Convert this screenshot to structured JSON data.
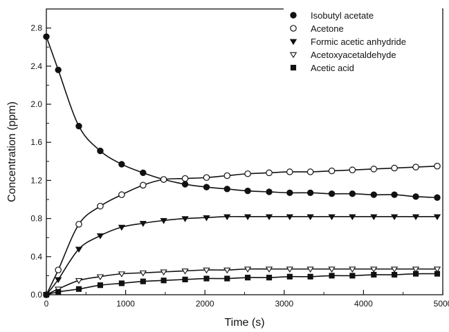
{
  "chart_data": {
    "type": "scatter",
    "title": "",
    "xlabel": "Time (s)",
    "ylabel": "Concentration (ppm)",
    "xlim": [
      0,
      5000
    ],
    "ylim": [
      0,
      3.0
    ],
    "xticks": [
      0,
      1000,
      2000,
      3000,
      4000,
      5000
    ],
    "xtick_labels": [
      "0",
      "1000",
      "2000",
      "3000",
      "4000",
      "5000"
    ],
    "yticks": [
      0,
      0.4,
      0.8,
      1.2,
      1.6,
      2.0,
      2.4,
      2.8
    ],
    "ytick_labels": [
      "0.0",
      "0.4",
      "0.8",
      "1.2",
      "1.6",
      "2.0",
      "2.4",
      "2.8"
    ],
    "grid": false,
    "legend_position": "top-right",
    "fit_curves": true,
    "x": [
      0,
      150,
      410,
      680,
      950,
      1220,
      1480,
      1750,
      2020,
      2280,
      2540,
      2810,
      3070,
      3330,
      3600,
      3860,
      4130,
      4390,
      4660,
      4930
    ],
    "series": [
      {
        "name": "Isobutyl acetate",
        "marker": "circle-filled",
        "color": "#111111",
        "values": [
          2.71,
          2.36,
          1.77,
          1.51,
          1.37,
          1.28,
          1.21,
          1.16,
          1.13,
          1.11,
          1.09,
          1.08,
          1.07,
          1.07,
          1.06,
          1.06,
          1.05,
          1.05,
          1.03,
          1.02
        ]
      },
      {
        "name": "Acetone",
        "marker": "circle-open",
        "color": "#111111",
        "values": [
          0.0,
          0.26,
          0.74,
          0.93,
          1.05,
          1.15,
          1.21,
          1.22,
          1.23,
          1.25,
          1.27,
          1.28,
          1.29,
          1.29,
          1.3,
          1.31,
          1.32,
          1.33,
          1.34,
          1.35
        ]
      },
      {
        "name": "Formic acetic anhydride",
        "marker": "triangle-down-filled",
        "color": "#111111",
        "values": [
          0.0,
          0.16,
          0.48,
          0.62,
          0.71,
          0.75,
          0.78,
          0.8,
          0.81,
          0.82,
          0.82,
          0.82,
          0.82,
          0.82,
          0.82,
          0.82,
          0.82,
          0.82,
          0.82,
          0.82
        ]
      },
      {
        "name": "Acetoxyacetaldehyde",
        "marker": "triangle-down-open",
        "color": "#111111",
        "values": [
          0.0,
          0.06,
          0.15,
          0.19,
          0.22,
          0.23,
          0.24,
          0.25,
          0.26,
          0.26,
          0.27,
          0.27,
          0.27,
          0.27,
          0.27,
          0.27,
          0.27,
          0.27,
          0.27,
          0.27
        ]
      },
      {
        "name": "Acetic acid",
        "marker": "square-filled",
        "color": "#111111",
        "values": [
          0.0,
          0.03,
          0.06,
          0.1,
          0.12,
          0.14,
          0.15,
          0.16,
          0.17,
          0.17,
          0.18,
          0.18,
          0.19,
          0.19,
          0.2,
          0.2,
          0.21,
          0.21,
          0.22,
          0.22
        ]
      }
    ]
  }
}
